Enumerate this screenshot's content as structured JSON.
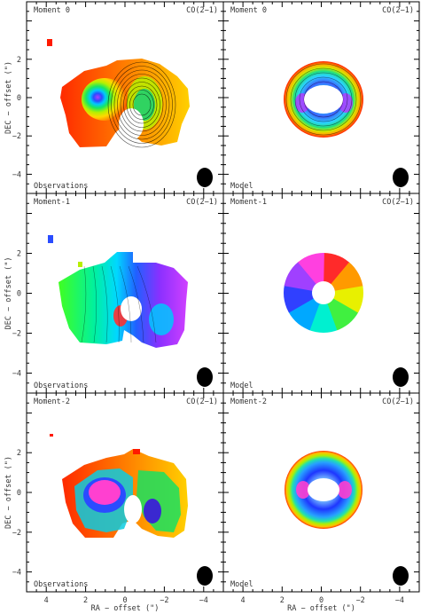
{
  "figure": {
    "axis_labels": {
      "x": "RA − offset (\")",
      "y": "DEC − offset (\")"
    },
    "tick_labels": {
      "x": [
        "4",
        "2",
        "0",
        "−2",
        "−4"
      ],
      "y": [
        "−4",
        "−2",
        "0",
        "2"
      ]
    },
    "line_label": "CO(2−1)",
    "beam": "black filled ellipse (beam), lower-right corner of each panel",
    "panels": [
      {
        "row": 0,
        "col": 0,
        "moment": "Moment 0",
        "line": "CO(2−1)",
        "footer": "Observations",
        "kind": "mom0_obs"
      },
      {
        "row": 0,
        "col": 1,
        "moment": "Moment 0",
        "line": "CO(2−1)",
        "footer": "Model",
        "kind": "mom0_model"
      },
      {
        "row": 1,
        "col": 0,
        "moment": "Moment-1",
        "line": "CO(2−1)",
        "footer": "Observations",
        "kind": "mom1_obs"
      },
      {
        "row": 1,
        "col": 1,
        "moment": "Moment-1",
        "line": "CO(2−1)",
        "footer": "Model",
        "kind": "mom1_model"
      },
      {
        "row": 2,
        "col": 0,
        "moment": "Moment-2",
        "line": "CO(2−1)",
        "footer": "Observations",
        "kind": "mom2_obs"
      },
      {
        "row": 2,
        "col": 1,
        "moment": "Moment-2",
        "line": "CO(2−1)",
        "footer": "Model",
        "kind": "mom2_model"
      }
    ]
  },
  "chart_data": {
    "type": "heatmap",
    "title": "",
    "xlabel": "RA − offset (\")",
    "ylabel": "DEC − offset (\")",
    "xlim": [
      5,
      -5
    ],
    "ylim": [
      -5,
      5
    ],
    "x_ticks": [
      4,
      2,
      0,
      -2,
      -4
    ],
    "y_ticks": [
      -4,
      -2,
      0,
      2
    ],
    "layout": "3 rows x 2 columns (Observations | Model)",
    "rows": [
      "Moment 0",
      "Moment-1",
      "Moment-2"
    ],
    "columns": [
      "Observations",
      "Model"
    ],
    "line": "CO(2−1)",
    "colormap": "rainbow",
    "annotations": [
      "Observations",
      "Model"
    ]
  }
}
